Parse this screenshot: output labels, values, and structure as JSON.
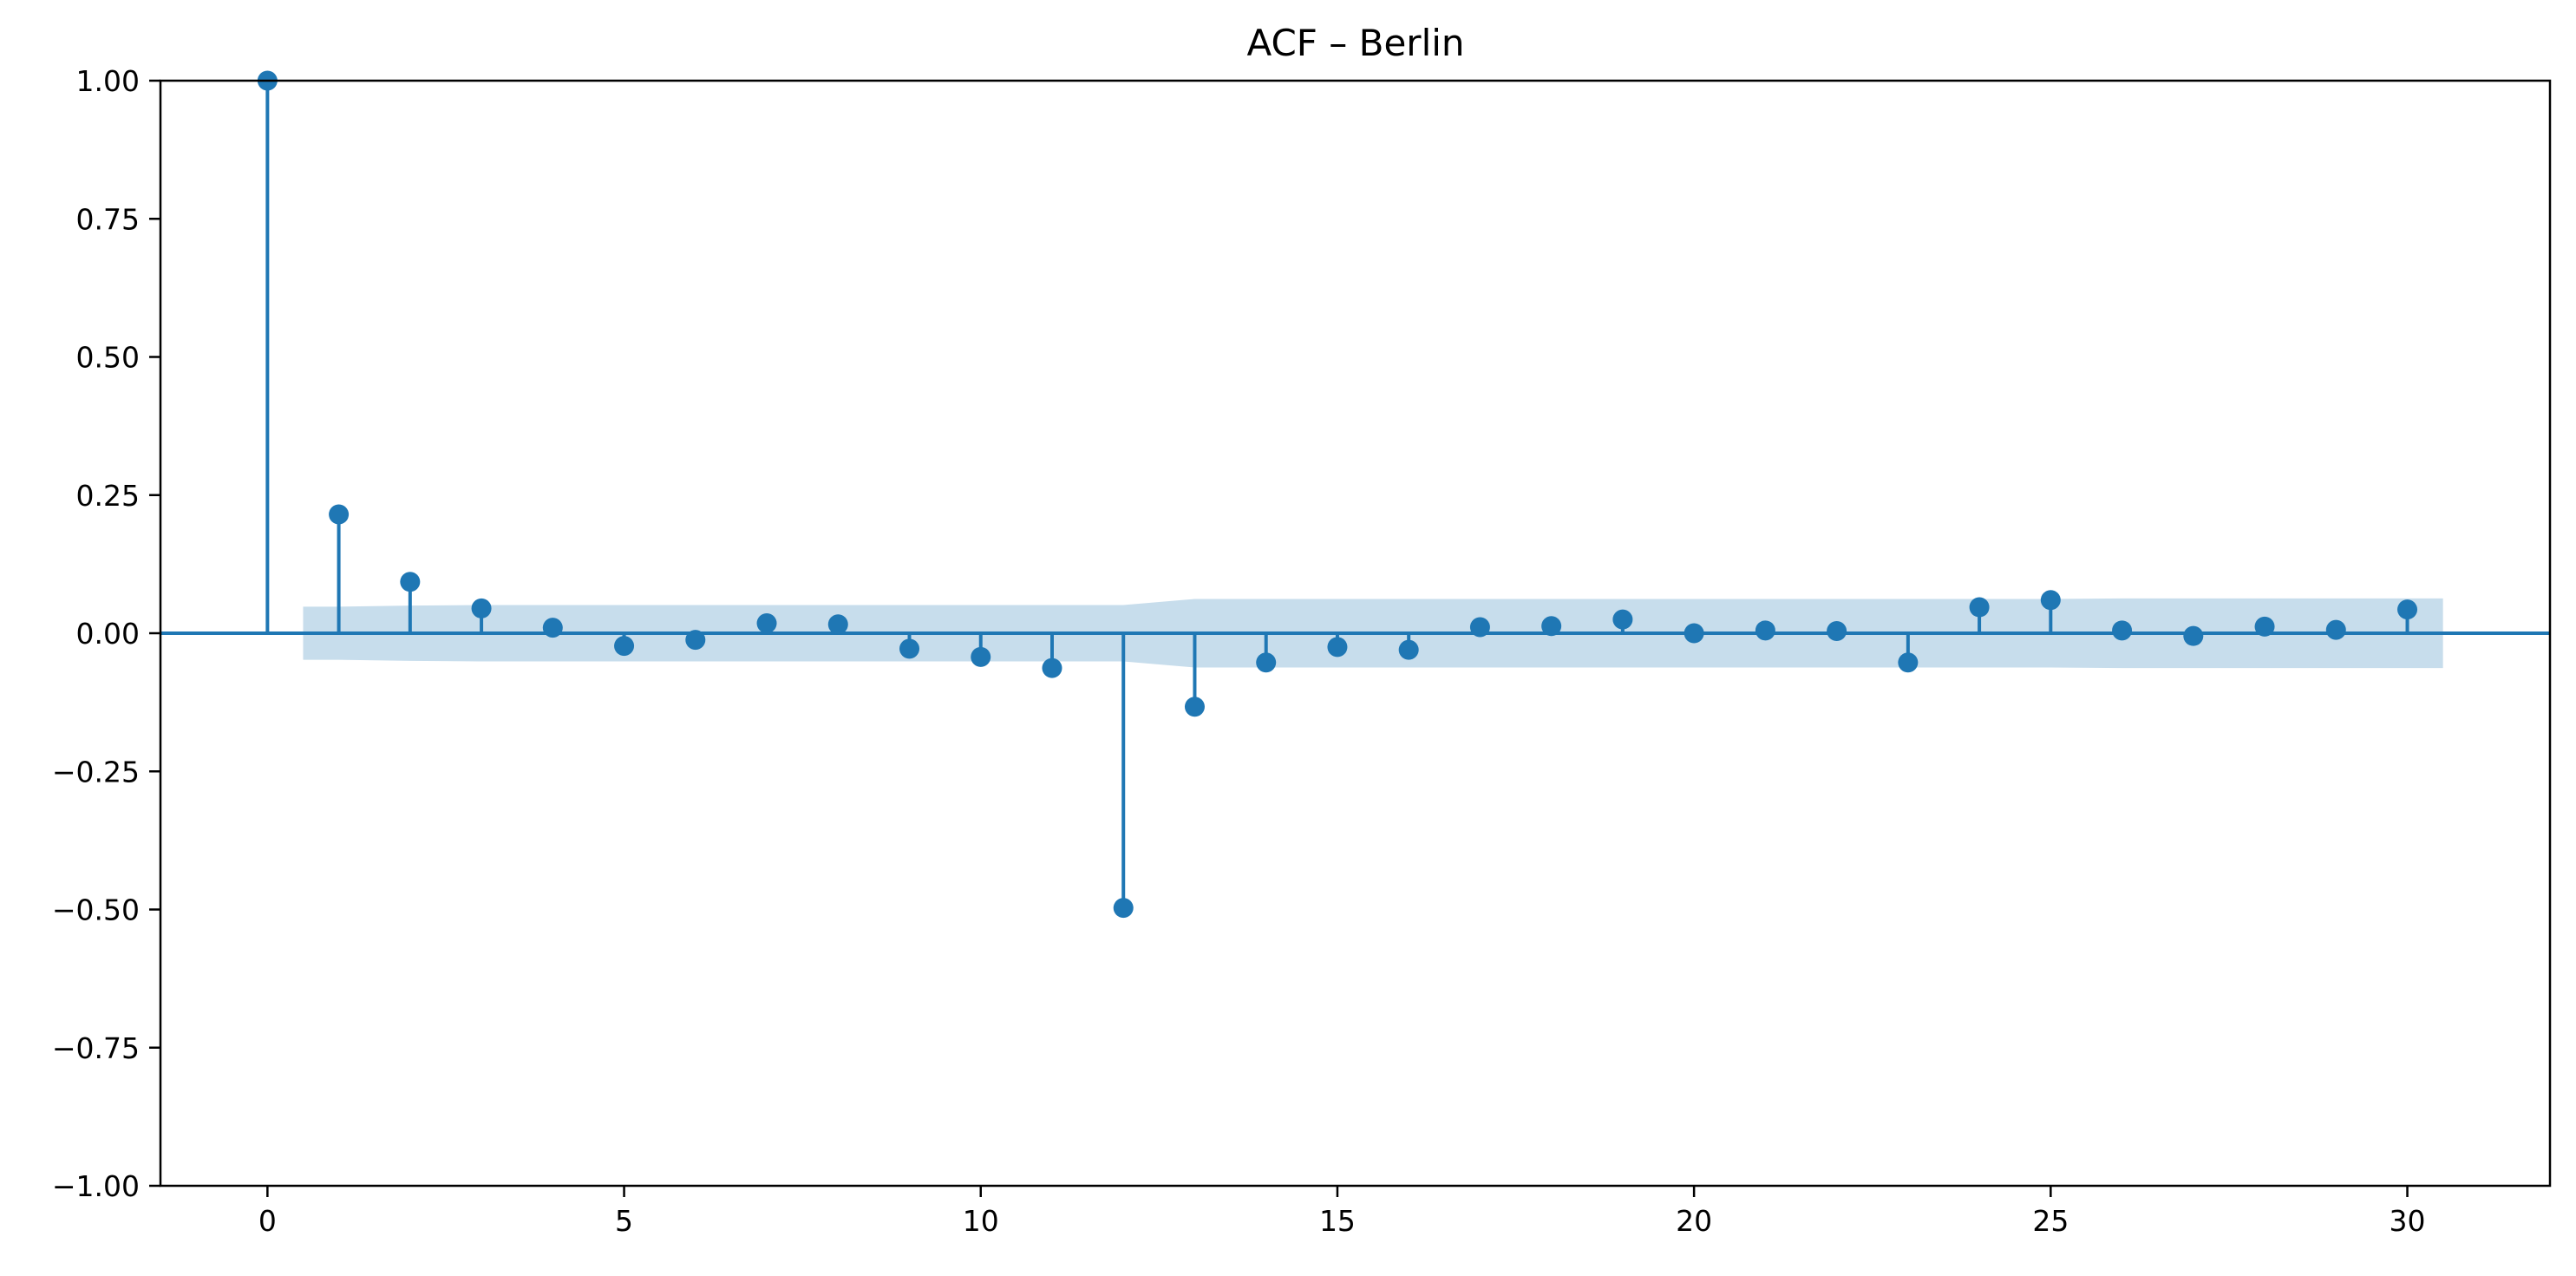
{
  "colors": {
    "stem": "#1f77b4",
    "marker": "#1f77b4",
    "confidence_band": "#1f77b4",
    "axis": "#000000",
    "background": "#ffffff"
  },
  "chart_data": {
    "type": "stem",
    "title": "ACF – Berlin",
    "xlabel": "",
    "ylabel": "",
    "xlim": [
      -1.5,
      32
    ],
    "ylim": [
      -1.0,
      1.0
    ],
    "x_ticks": [
      0,
      5,
      10,
      15,
      20,
      25,
      30
    ],
    "x_tick_labels": [
      "0",
      "5",
      "10",
      "15",
      "20",
      "25",
      "30"
    ],
    "y_ticks": [
      1.0,
      0.75,
      0.5,
      0.25,
      0.0,
      -0.25,
      -0.5,
      -0.75,
      -1.0
    ],
    "y_tick_labels": [
      "1.00",
      "0.75",
      "0.50",
      "0.25",
      "0.00",
      "−0.25",
      "−0.50",
      "−0.75",
      "−1.00"
    ],
    "grid": false,
    "lags": [
      0,
      1,
      2,
      3,
      4,
      5,
      6,
      7,
      8,
      9,
      10,
      11,
      12,
      13,
      14,
      15,
      16,
      17,
      18,
      19,
      20,
      21,
      22,
      23,
      24,
      25,
      26,
      27,
      28,
      29,
      30
    ],
    "values": [
      1.0,
      0.215,
      0.093,
      0.045,
      0.01,
      -0.023,
      -0.012,
      0.018,
      0.016,
      -0.028,
      -0.043,
      -0.063,
      -0.497,
      -0.133,
      -0.053,
      -0.025,
      -0.03,
      0.011,
      0.013,
      0.025,
      0.0,
      0.005,
      0.004,
      -0.053,
      0.047,
      0.06,
      0.005,
      -0.005,
      0.012,
      0.006,
      0.043
    ],
    "confidence_band": {
      "lags": [
        0.5,
        1,
        2,
        3,
        4,
        5,
        6,
        7,
        8,
        9,
        10,
        11,
        12,
        13,
        14,
        15,
        16,
        17,
        18,
        19,
        20,
        21,
        22,
        23,
        24,
        25,
        26,
        27,
        28,
        29,
        30,
        30.5
      ],
      "upper": [
        0.048,
        0.048,
        0.05,
        0.051,
        0.051,
        0.051,
        0.051,
        0.051,
        0.051,
        0.051,
        0.051,
        0.051,
        0.051,
        0.062,
        0.062,
        0.062,
        0.062,
        0.062,
        0.062,
        0.062,
        0.062,
        0.062,
        0.062,
        0.062,
        0.062,
        0.062,
        0.063,
        0.063,
        0.063,
        0.063,
        0.063,
        0.063
      ],
      "lower": [
        -0.048,
        -0.048,
        -0.05,
        -0.051,
        -0.051,
        -0.051,
        -0.051,
        -0.051,
        -0.051,
        -0.051,
        -0.051,
        -0.051,
        -0.051,
        -0.062,
        -0.062,
        -0.062,
        -0.062,
        -0.062,
        -0.062,
        -0.062,
        -0.062,
        -0.062,
        -0.062,
        -0.062,
        -0.062,
        -0.062,
        -0.063,
        -0.063,
        -0.063,
        -0.063,
        -0.063,
        -0.063
      ]
    }
  }
}
